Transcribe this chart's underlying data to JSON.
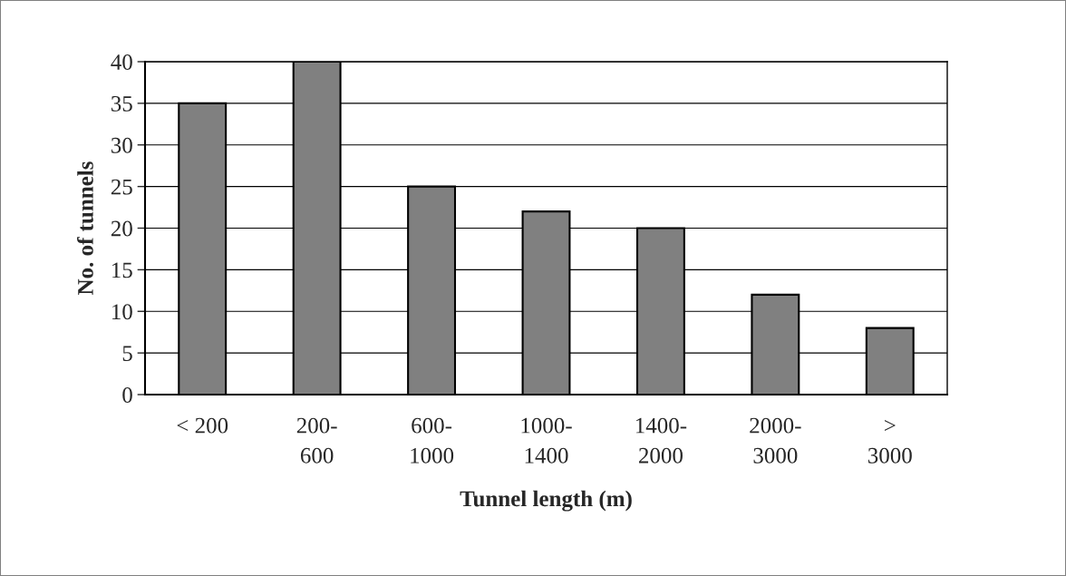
{
  "chart_data": {
    "type": "bar",
    "xlabel": "Tunnel length (m)",
    "ylabel": "No. of tunnels",
    "categories": [
      "< 200",
      "200-\n600",
      "600-\n1000",
      "1000-\n1400",
      "1400-\n2000",
      "2000-\n3000",
      ">\n3000"
    ],
    "values": [
      35,
      40,
      25,
      22,
      20,
      12,
      8
    ],
    "color": "#808080",
    "ylim": [
      0,
      40
    ],
    "yticks": [
      0,
      5,
      10,
      15,
      20,
      25,
      30,
      35,
      40
    ],
    "grid": "y",
    "legend": false
  }
}
